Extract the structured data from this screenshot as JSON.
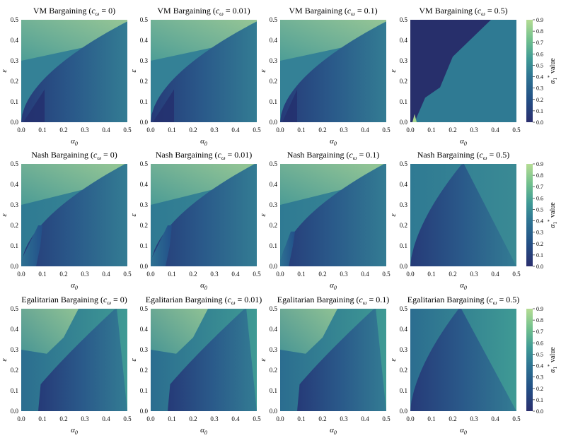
{
  "colorbar": {
    "label_prefix": "α",
    "label_sub": "1",
    "label_sup": "*",
    "label_suffix": " value",
    "ticks": [
      "0.0",
      "0.1",
      "0.2",
      "0.3",
      "0.4",
      "0.5",
      "0.6",
      "0.7",
      "0.8",
      "0.9"
    ],
    "range": [
      0.0,
      0.9
    ]
  },
  "axes": {
    "xlabel": "α",
    "xlabel_sub": "0",
    "ylabel": "ε",
    "x_ticks": [
      "0.0",
      "0.1",
      "0.2",
      "0.3",
      "0.4",
      "0.5"
    ],
    "y_ticks": [
      "0.0",
      "0.1",
      "0.2",
      "0.3",
      "0.4",
      "0.5"
    ]
  },
  "colors": {
    "low": "#2a2f6e",
    "mid_low": "#234f85",
    "mid": "#2e7593",
    "mid_high": "#3d8c93",
    "high": "#a8d58d",
    "top": "#cde8a8"
  },
  "chart_data": [
    {
      "type": "heatmap",
      "title": "VM Bargaining (",
      "c": "0",
      "title_end": ")",
      "scheme": "VM",
      "cost": 0
    },
    {
      "type": "heatmap",
      "title": "VM Bargaining (",
      "c": "0.01",
      "title_end": ")",
      "scheme": "VM",
      "cost": 0.01
    },
    {
      "type": "heatmap",
      "title": "VM Bargaining (",
      "c": "0.1",
      "title_end": ")",
      "scheme": "VM",
      "cost": 0.1
    },
    {
      "type": "heatmap",
      "title": "VM Bargaining (",
      "c": "0.5",
      "title_end": ")",
      "scheme": "VM",
      "cost": 0.5
    },
    {
      "type": "heatmap",
      "title": "Nash Bargaining (",
      "c": "0",
      "title_end": ")",
      "scheme": "Nash",
      "cost": 0
    },
    {
      "type": "heatmap",
      "title": "Nash Bargaining (",
      "c": "0.01",
      "title_end": ")",
      "scheme": "Nash",
      "cost": 0.01
    },
    {
      "type": "heatmap",
      "title": "Nash Bargaining (",
      "c": "0.1",
      "title_end": ")",
      "scheme": "Nash",
      "cost": 0.1
    },
    {
      "type": "heatmap",
      "title": "Nash Bargaining (",
      "c": "0.5",
      "title_end": ")",
      "scheme": "Nash",
      "cost": 0.5
    },
    {
      "type": "heatmap",
      "title": "Egalitarian Bargaining (",
      "c": "0",
      "title_end": ")",
      "scheme": "Egalitarian",
      "cost": 0
    },
    {
      "type": "heatmap",
      "title": "Egalitarian Bargaining (",
      "c": "0.01",
      "title_end": ")",
      "scheme": "Egalitarian",
      "cost": 0.01
    },
    {
      "type": "heatmap",
      "title": "Egalitarian Bargaining (",
      "c": "0.1",
      "title_end": ")",
      "scheme": "Egalitarian",
      "cost": 0.1
    },
    {
      "type": "heatmap",
      "title": "Egalitarian Bargaining (",
      "c": "0.5",
      "title_end": ")",
      "scheme": "Egalitarian",
      "cost": 0.5
    }
  ]
}
